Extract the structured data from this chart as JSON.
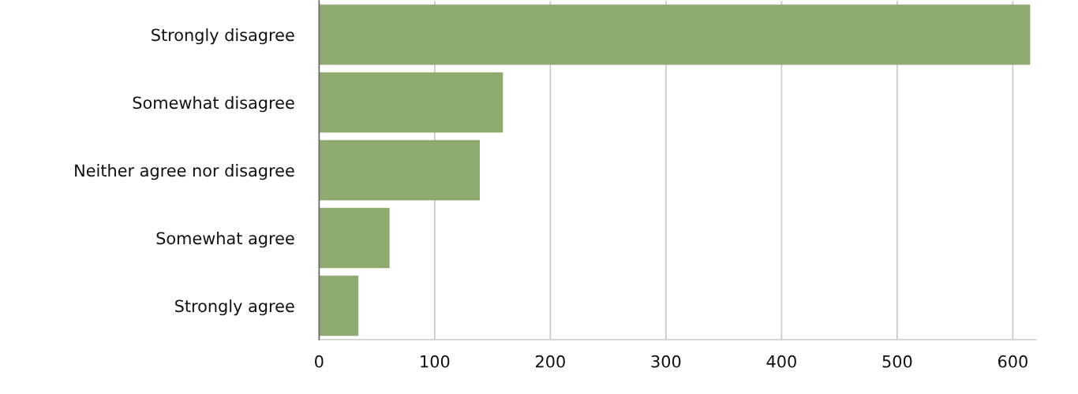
{
  "chart_data": {
    "type": "bar",
    "orientation": "horizontal",
    "categories": [
      "Strongly disagree",
      "Somewhat disagree",
      "Neither agree nor disagree",
      "Somewhat agree",
      "Strongly agree"
    ],
    "values": [
      615,
      159,
      139,
      61,
      34
    ],
    "color": "#8faa6e",
    "xlim": [
      0,
      620
    ],
    "xticks": [
      0,
      100,
      200,
      300,
      400,
      500,
      600
    ],
    "grid": "x",
    "legend": false
  }
}
